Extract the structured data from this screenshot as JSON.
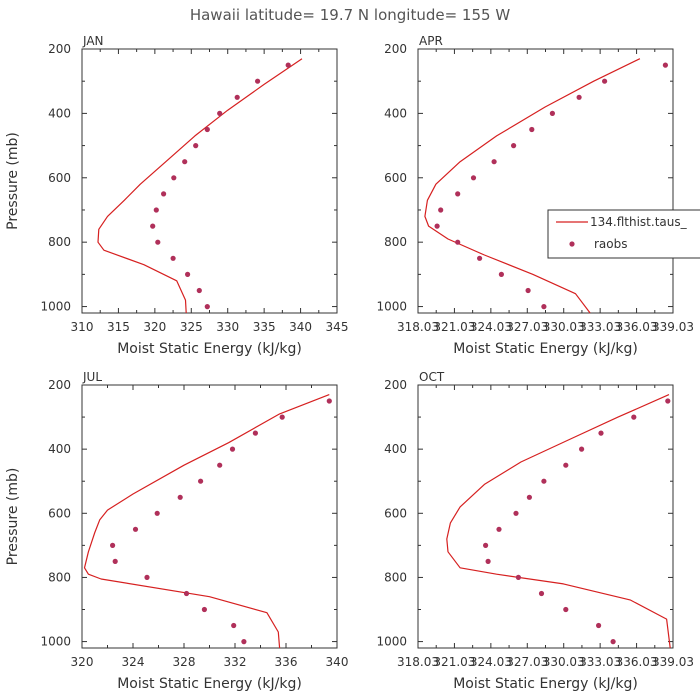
{
  "title": "Hawaii   latitude= 19.7 N longitude= 155 W",
  "colors": {
    "model": "#d62020",
    "obs": "#b0305a",
    "axis": "#333333"
  },
  "legend": {
    "model_label": "134.flthist.taus_",
    "obs_label": "raobs"
  },
  "chart_data": [
    {
      "type": "line",
      "panel": "JAN",
      "title": "JAN",
      "xlabel": "Moist Static Energy (kJ/kg)",
      "ylabel": "Pressure (mb)",
      "xlim": [
        310,
        345
      ],
      "ylim": [
        1020,
        200
      ],
      "xticks": [
        310,
        315,
        320,
        325,
        330,
        335,
        340,
        345
      ],
      "xtick_labels": [
        "310",
        "315",
        "320",
        "325",
        "330",
        "335",
        "340",
        "345"
      ],
      "yticks": [
        200,
        400,
        600,
        800,
        1000
      ],
      "ytick_labels": [
        "200",
        "400",
        "600",
        "800",
        "1000"
      ],
      "series": [
        {
          "name": "134.flthist.taus_",
          "kind": "line",
          "x": [
            340.2,
            335,
            330,
            325.5,
            321.5,
            318,
            315.8,
            313.5,
            312.3,
            312.2,
            313,
            318.5,
            323,
            324.2,
            324.3
          ],
          "y": [
            230,
            310,
            390,
            470,
            550,
            620,
            670,
            720,
            760,
            800,
            825,
            870,
            920,
            980,
            1020
          ]
        },
        {
          "name": "raobs",
          "kind": "scatter",
          "x": [
            338.3,
            334.1,
            331.3,
            328.9,
            327.2,
            325.6,
            324.1,
            322.6,
            321.2,
            320.2,
            319.7,
            320.4,
            322.5,
            324.5,
            326.1,
            327.2
          ],
          "y": [
            250,
            300,
            350,
            400,
            450,
            500,
            550,
            600,
            650,
            700,
            750,
            800,
            850,
            900,
            950,
            1000
          ]
        }
      ]
    },
    {
      "type": "line",
      "panel": "APR",
      "title": "APR",
      "xlabel": "Moist Static Energy (kJ/kg)",
      "ylabel": "",
      "xlim": [
        318.03,
        339.03
      ],
      "ylim": [
        1020,
        200
      ],
      "xticks": [
        318.03,
        321.03,
        324.03,
        327.03,
        330.03,
        333.03,
        336.03,
        339.03
      ],
      "xtick_labels": [
        "318.03",
        "321.03",
        "324.03",
        "327.03",
        "330.03",
        "333.03",
        "336.03",
        "339.03"
      ],
      "yticks": [
        200,
        400,
        600,
        800,
        1000
      ],
      "ytick_labels": [
        "200",
        "400",
        "600",
        "800",
        "1000"
      ],
      "series": [
        {
          "name": "134.flthist.taus_",
          "kind": "line",
          "x": [
            336.3,
            332.5,
            328.5,
            324.5,
            321.5,
            319.5,
            318.8,
            318.6,
            318.9,
            320.5,
            323.5,
            327.5,
            331,
            332.2
          ],
          "y": [
            230,
            300,
            380,
            470,
            550,
            620,
            670,
            720,
            750,
            790,
            840,
            900,
            960,
            1020
          ]
        },
        {
          "name": "raobs",
          "kind": "scatter",
          "x": [
            338.4,
            333.4,
            331.3,
            329.1,
            327.4,
            325.9,
            324.3,
            322.6,
            321.3,
            319.9,
            319.6,
            321.3,
            323.1,
            324.9,
            327.1,
            328.4
          ],
          "y": [
            250,
            300,
            350,
            400,
            450,
            500,
            550,
            600,
            650,
            700,
            750,
            800,
            850,
            900,
            950,
            1000
          ]
        }
      ]
    },
    {
      "type": "line",
      "panel": "JUL",
      "title": "JUL",
      "xlabel": "Moist Static Energy (kJ/kg)",
      "ylabel": "Pressure (mb)",
      "xlim": [
        320,
        340
      ],
      "ylim": [
        1020,
        200
      ],
      "xticks": [
        320,
        324,
        328,
        332,
        336,
        340
      ],
      "xtick_labels": [
        "320",
        "324",
        "328",
        "332",
        "336",
        "340"
      ],
      "yticks": [
        200,
        400,
        600,
        800,
        1000
      ],
      "ytick_labels": [
        "200",
        "400",
        "600",
        "800",
        "1000"
      ],
      "series": [
        {
          "name": "134.flthist.taus_",
          "kind": "line",
          "x": [
            339.4,
            335.5,
            331.5,
            328,
            324,
            322,
            321.4,
            321,
            320.5,
            320.2,
            320.5,
            321.5,
            330,
            334.5,
            335.4,
            335.5
          ],
          "y": [
            230,
            290,
            380,
            450,
            540,
            590,
            620,
            660,
            720,
            770,
            790,
            805,
            860,
            910,
            970,
            1020
          ]
        },
        {
          "name": "raobs",
          "kind": "scatter",
          "x": [
            339.4,
            335.7,
            333.6,
            331.8,
            330.8,
            329.3,
            327.7,
            325.9,
            324.2,
            322.4,
            322.6,
            325.1,
            328.2,
            329.6,
            331.9,
            332.7
          ],
          "y": [
            250,
            300,
            350,
            400,
            450,
            500,
            550,
            600,
            650,
            700,
            750,
            800,
            850,
            900,
            950,
            1000
          ]
        }
      ]
    },
    {
      "type": "line",
      "panel": "OCT",
      "title": "OCT",
      "xlabel": "Moist Static Energy (kJ/kg)",
      "ylabel": "",
      "xlim": [
        318.03,
        339.03
      ],
      "ylim": [
        1020,
        200
      ],
      "xticks": [
        318.03,
        321.03,
        324.03,
        327.03,
        330.03,
        333.03,
        336.03,
        339.03
      ],
      "xtick_labels": [
        "318.03",
        "321.03",
        "324.03",
        "327.03",
        "330.03",
        "333.03",
        "336.03",
        "339.03"
      ],
      "yticks": [
        200,
        400,
        600,
        800,
        1000
      ],
      "ytick_labels": [
        "200",
        "400",
        "600",
        "800",
        "1000"
      ],
      "series": [
        {
          "name": "134.flthist.taus_",
          "kind": "line",
          "x": [
            338.7,
            334.5,
            330.5,
            326.5,
            323.5,
            321.5,
            320.7,
            320.4,
            320.5,
            321.5,
            324.5,
            330,
            335.5,
            338.5,
            338.8
          ],
          "y": [
            230,
            300,
            370,
            440,
            510,
            580,
            630,
            680,
            720,
            770,
            790,
            820,
            870,
            930,
            1020
          ]
        },
        {
          "name": "raobs",
          "kind": "scatter",
          "x": [
            338.6,
            335.8,
            333.1,
            331.5,
            330.2,
            328.4,
            327.2,
            326.1,
            324.7,
            323.6,
            323.8,
            326.3,
            328.2,
            330.2,
            332.9,
            334.1
          ],
          "y": [
            250,
            300,
            350,
            400,
            450,
            500,
            550,
            600,
            650,
            700,
            750,
            800,
            850,
            900,
            950,
            1000
          ]
        }
      ]
    }
  ]
}
